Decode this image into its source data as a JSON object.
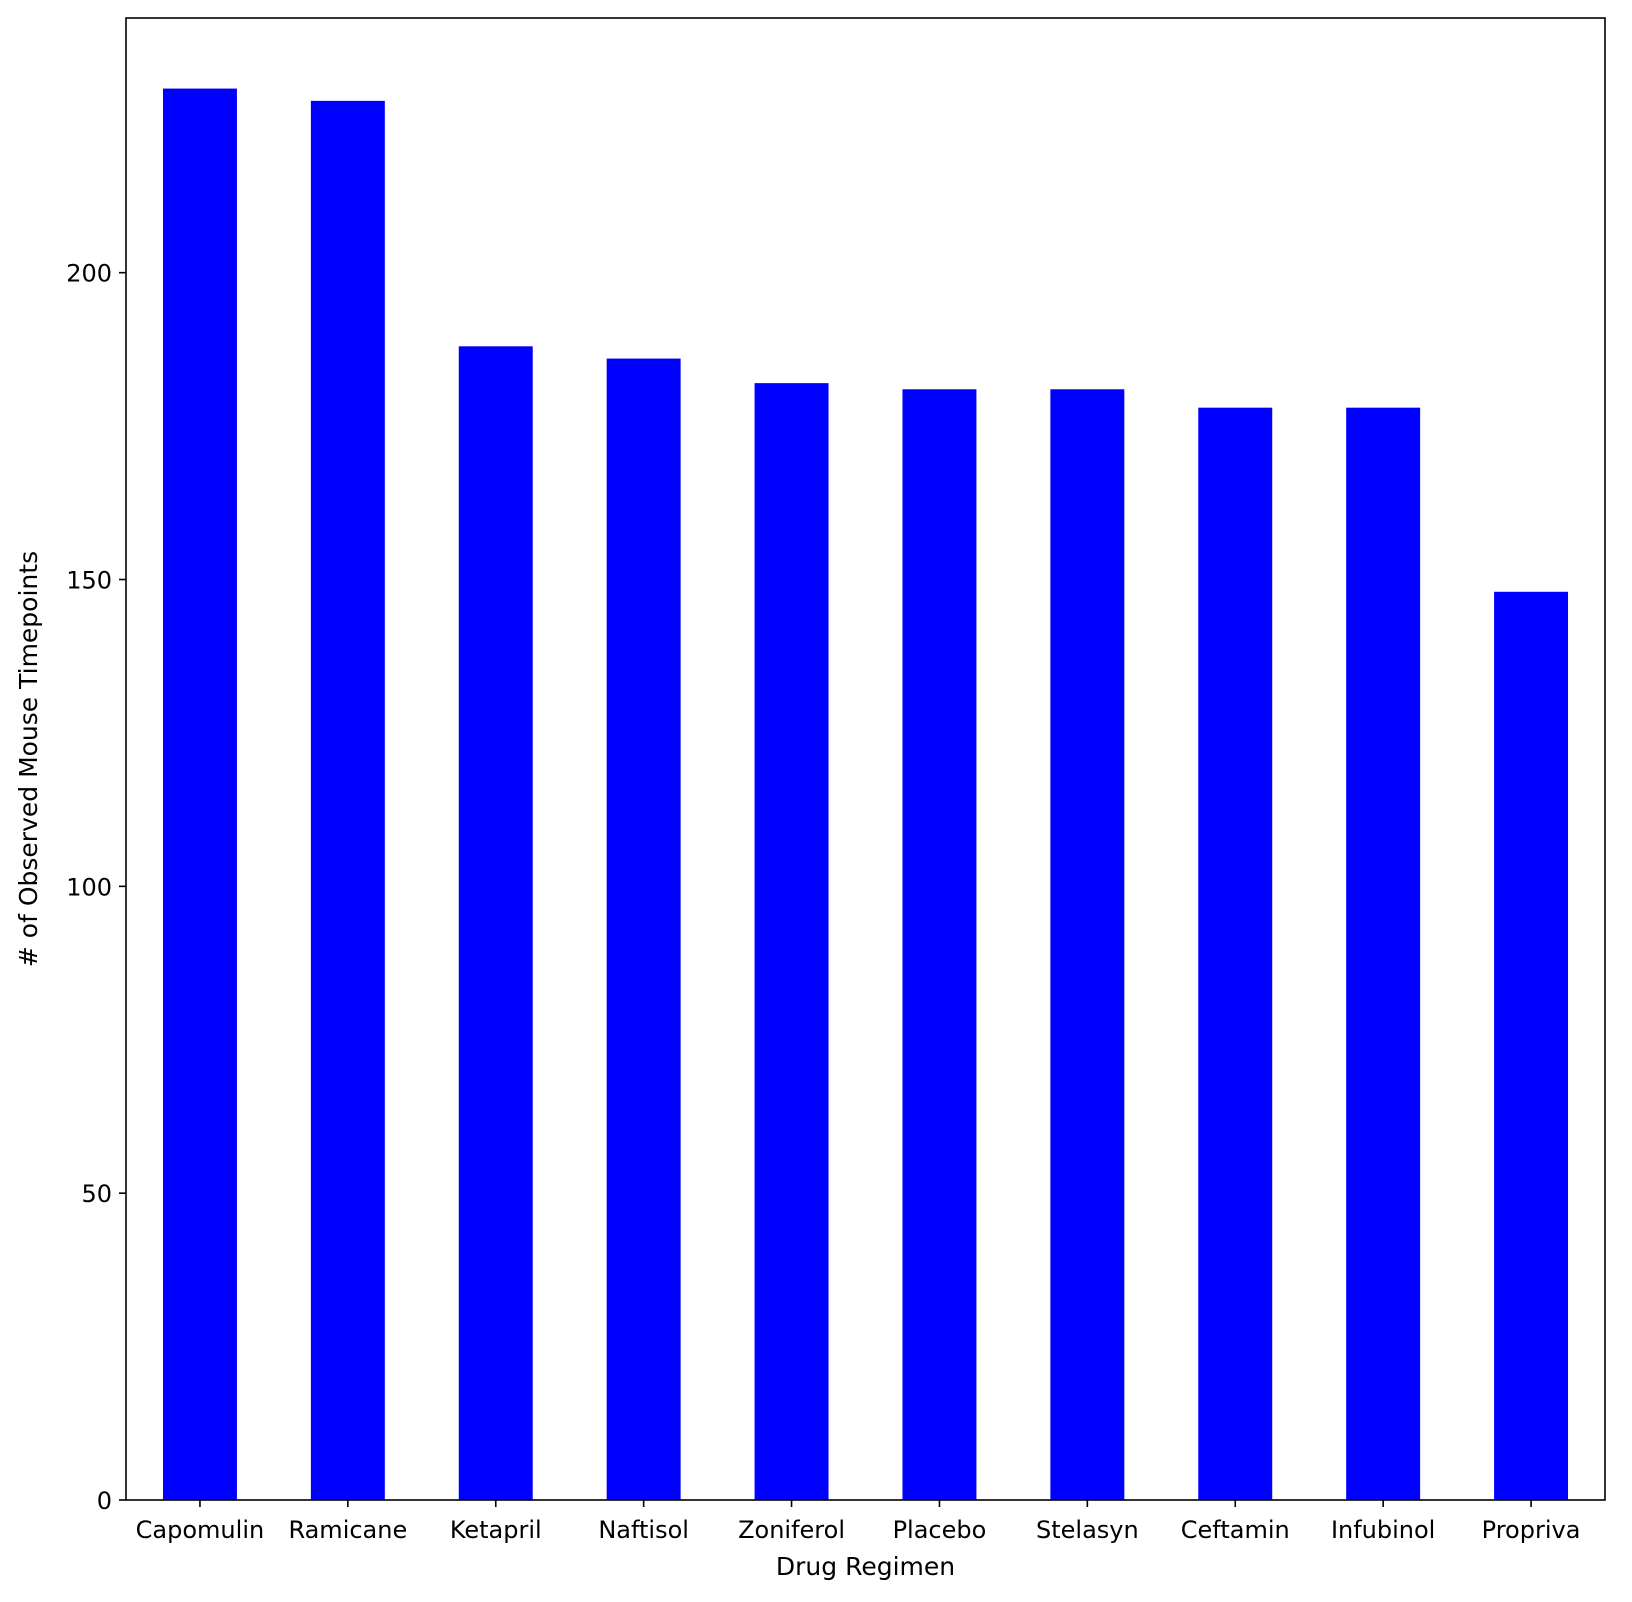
{
  "chart_data": {
    "type": "bar",
    "title": "",
    "xlabel": "Drug Regimen",
    "ylabel": "# of Observed Mouse Timepoints",
    "categories": [
      "Capomulin",
      "Ramicane",
      "Ketapril",
      "Naftisol",
      "Zoniferol",
      "Placebo",
      "Stelasyn",
      "Ceftamin",
      "Infubinol",
      "Propriva"
    ],
    "values": [
      230,
      228,
      188,
      186,
      182,
      181,
      181,
      178,
      178,
      148
    ],
    "ylim": [
      0,
      241.5
    ],
    "yticks": [
      0,
      50,
      100,
      150,
      200
    ],
    "grid": false,
    "legend": "none",
    "bar_color": "#0000ff"
  }
}
